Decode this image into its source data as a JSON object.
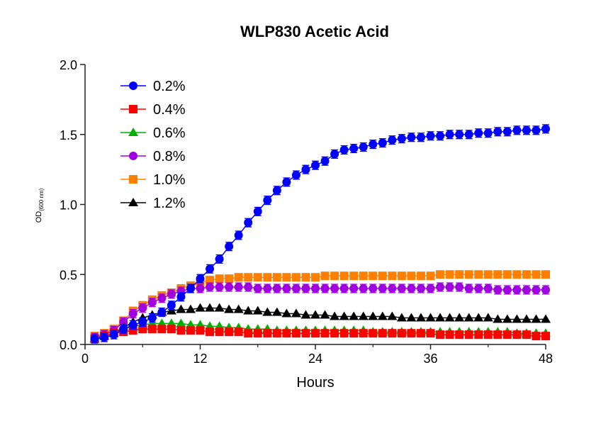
{
  "chart_data": {
    "type": "line",
    "title": "WLP830 Acetic Acid",
    "xlabel": "Hours",
    "ylabel": "OD",
    "ylabel_sub": "(600 nm)",
    "xlim": [
      0,
      48
    ],
    "ylim": [
      0,
      2.0
    ],
    "xticks": [
      0,
      12,
      24,
      36,
      48
    ],
    "xtick_labels": [
      "0",
      "12",
      "24",
      "36",
      "48"
    ],
    "yticks": [
      0,
      0.5,
      1.0,
      1.5,
      2.0
    ],
    "ytick_labels": [
      "0.0",
      "0.5",
      "1.0",
      "1.5",
      "2.0"
    ],
    "grid": false,
    "legend_placement": "top-left",
    "x": [
      1,
      2,
      3,
      4,
      5,
      6,
      7,
      8,
      9,
      10,
      11,
      12,
      13,
      14,
      15,
      16,
      17,
      18,
      19,
      20,
      21,
      22,
      23,
      24,
      25,
      26,
      27,
      28,
      29,
      30,
      31,
      32,
      33,
      34,
      35,
      36,
      37,
      38,
      39,
      40,
      41,
      42,
      43,
      44,
      45,
      46,
      47,
      48
    ],
    "series": [
      {
        "name": "0.2%",
        "color": "#0000ff",
        "marker": "circle",
        "error": 0.03,
        "values": [
          0.04,
          0.05,
          0.07,
          0.11,
          0.14,
          0.16,
          0.19,
          0.23,
          0.28,
          0.34,
          0.4,
          0.47,
          0.54,
          0.61,
          0.7,
          0.78,
          0.87,
          0.95,
          1.03,
          1.1,
          1.16,
          1.21,
          1.25,
          1.28,
          1.31,
          1.36,
          1.39,
          1.4,
          1.41,
          1.43,
          1.44,
          1.46,
          1.47,
          1.48,
          1.48,
          1.49,
          1.49,
          1.5,
          1.5,
          1.5,
          1.51,
          1.51,
          1.52,
          1.52,
          1.53,
          1.53,
          1.53,
          1.54
        ]
      },
      {
        "name": "0.4%",
        "color": "#ff0000",
        "marker": "square",
        "error": 0.01,
        "values": [
          0.04,
          0.06,
          0.08,
          0.09,
          0.1,
          0.11,
          0.11,
          0.11,
          0.11,
          0.1,
          0.1,
          0.1,
          0.09,
          0.09,
          0.09,
          0.09,
          0.08,
          0.08,
          0.08,
          0.08,
          0.08,
          0.08,
          0.08,
          0.08,
          0.08,
          0.08,
          0.08,
          0.08,
          0.08,
          0.08,
          0.08,
          0.08,
          0.08,
          0.08,
          0.08,
          0.08,
          0.07,
          0.07,
          0.07,
          0.07,
          0.07,
          0.07,
          0.07,
          0.07,
          0.07,
          0.07,
          0.06,
          0.06
        ]
      },
      {
        "name": "0.6%",
        "color": "#00b000",
        "marker": "triangle",
        "error": 0.01,
        "values": [
          0.04,
          0.06,
          0.08,
          0.11,
          0.13,
          0.14,
          0.15,
          0.15,
          0.15,
          0.15,
          0.14,
          0.14,
          0.13,
          0.13,
          0.12,
          0.12,
          0.11,
          0.11,
          0.11,
          0.1,
          0.1,
          0.1,
          0.1,
          0.1,
          0.1,
          0.1,
          0.1,
          0.1,
          0.1,
          0.09,
          0.09,
          0.09,
          0.09,
          0.09,
          0.09,
          0.09,
          0.09,
          0.09,
          0.09,
          0.09,
          0.09,
          0.09,
          0.09,
          0.09,
          0.08,
          0.08,
          0.08,
          0.08
        ]
      },
      {
        "name": "0.8%",
        "color": "#a000e0",
        "marker": "circle",
        "error": 0.03,
        "values": [
          0.05,
          0.07,
          0.1,
          0.16,
          0.22,
          0.26,
          0.3,
          0.33,
          0.36,
          0.38,
          0.4,
          0.4,
          0.41,
          0.41,
          0.41,
          0.41,
          0.41,
          0.4,
          0.4,
          0.4,
          0.4,
          0.4,
          0.4,
          0.4,
          0.4,
          0.4,
          0.4,
          0.4,
          0.4,
          0.4,
          0.4,
          0.4,
          0.4,
          0.4,
          0.4,
          0.4,
          0.41,
          0.41,
          0.41,
          0.4,
          0.4,
          0.4,
          0.39,
          0.39,
          0.39,
          0.39,
          0.39,
          0.39
        ]
      },
      {
        "name": "1.0%",
        "color": "#ff8000",
        "marker": "square",
        "error": 0.01,
        "values": [
          0.06,
          0.08,
          0.11,
          0.17,
          0.24,
          0.28,
          0.32,
          0.35,
          0.37,
          0.4,
          0.42,
          0.44,
          0.46,
          0.47,
          0.47,
          0.48,
          0.48,
          0.48,
          0.48,
          0.48,
          0.48,
          0.48,
          0.48,
          0.48,
          0.49,
          0.49,
          0.49,
          0.49,
          0.49,
          0.49,
          0.49,
          0.49,
          0.49,
          0.49,
          0.49,
          0.49,
          0.5,
          0.5,
          0.5,
          0.5,
          0.5,
          0.5,
          0.5,
          0.5,
          0.5,
          0.5,
          0.5,
          0.5
        ]
      },
      {
        "name": "1.2%",
        "color": "#000000",
        "marker": "triangle",
        "error": 0.01,
        "values": [
          0.04,
          0.06,
          0.08,
          0.12,
          0.16,
          0.19,
          0.21,
          0.23,
          0.24,
          0.25,
          0.25,
          0.26,
          0.26,
          0.26,
          0.25,
          0.25,
          0.24,
          0.24,
          0.23,
          0.23,
          0.22,
          0.22,
          0.21,
          0.21,
          0.21,
          0.2,
          0.2,
          0.2,
          0.2,
          0.2,
          0.2,
          0.2,
          0.19,
          0.19,
          0.19,
          0.19,
          0.19,
          0.19,
          0.19,
          0.19,
          0.19,
          0.19,
          0.18,
          0.18,
          0.18,
          0.18,
          0.18,
          0.18
        ]
      }
    ]
  }
}
